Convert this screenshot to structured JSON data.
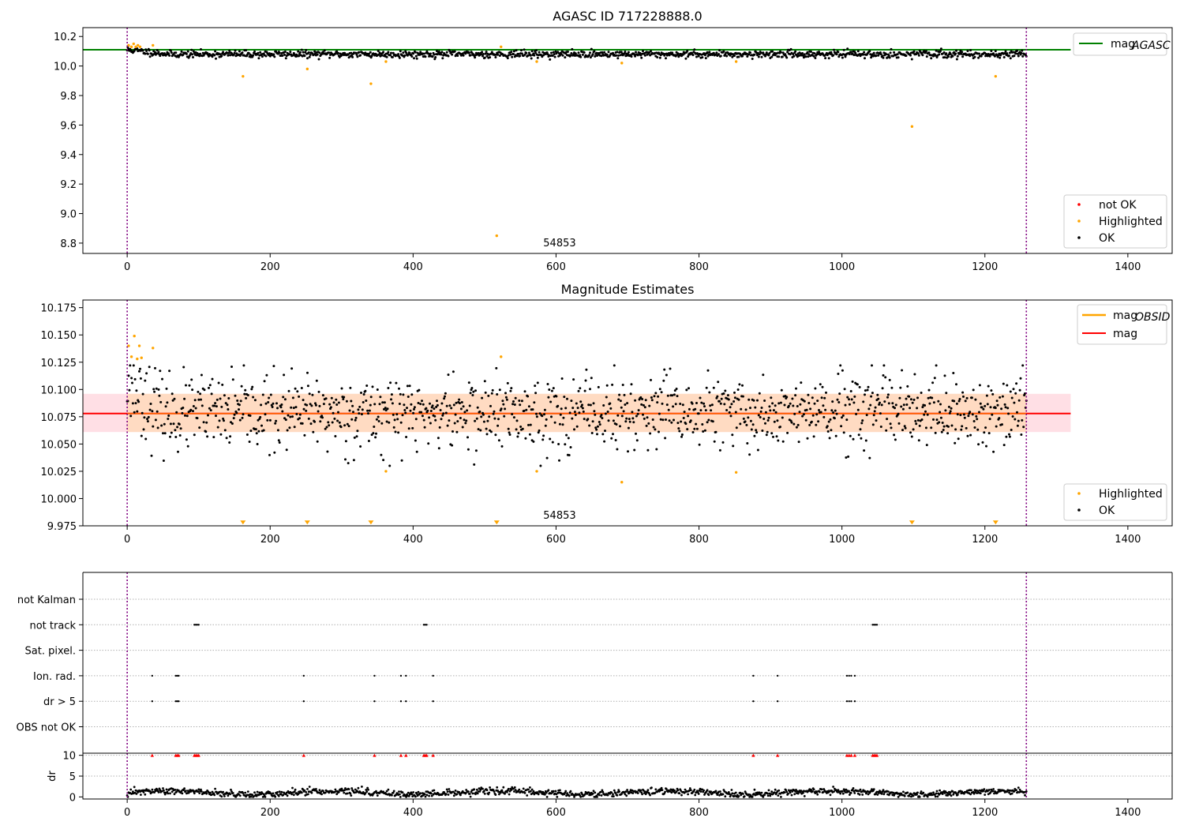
{
  "colors": {
    "ok": "#000000",
    "highlighted": "#ffa500",
    "not_ok": "#ff0000",
    "agasc_line": "#008000",
    "mag_line": "#ff0000",
    "mag_obsid_line": "#ffa500",
    "band": "#ffc0cb",
    "inner_band": "#ffdab9",
    "boundary": "#800080"
  },
  "chart_data": [
    {
      "type": "scatter",
      "title": "AGASC ID 717228888.0",
      "annotation": "54853",
      "xlim": [
        -62,
        1462
      ],
      "ylim": [
        8.73,
        10.26
      ],
      "xticks": [
        0,
        200,
        400,
        600,
        800,
        1000,
        1200,
        1400
      ],
      "yticks": [
        8.8,
        9.0,
        9.2,
        9.4,
        9.6,
        9.8,
        10.0,
        10.2
      ],
      "ytick_labels": [
        "8.8",
        "9.0",
        "9.2",
        "9.4",
        "9.6",
        "9.8",
        "10.0",
        "10.2"
      ],
      "reference_line": {
        "name": "mag_AGASC",
        "label_main": "mag",
        "label_sub": "AGASC",
        "y": 10.11,
        "x": [
          -62,
          1320
        ]
      },
      "vlines": [
        0,
        1258
      ],
      "ok_series": {
        "name": "OK",
        "n": 1258,
        "x0": 0,
        "x1": 1258,
        "baseline": 10.08,
        "spread": 0.012
      },
      "highlighted": {
        "name": "Highlighted",
        "x": [
          2,
          6,
          9,
          12,
          15,
          18,
          36,
          162,
          252,
          341,
          362,
          517,
          523,
          573,
          692,
          852,
          1098,
          1215
        ],
        "y": [
          10.14,
          10.13,
          10.15,
          10.13,
          10.14,
          10.13,
          10.14,
          9.93,
          9.98,
          9.88,
          10.03,
          8.85,
          10.13,
          10.03,
          10.02,
          10.03,
          9.59,
          9.93
        ]
      },
      "legend_lines": [
        {
          "name": "mag_AGASC",
          "main": "mag",
          "sub": "AGASC"
        }
      ],
      "legend_points": [
        "not OK",
        "Highlighted",
        "OK"
      ],
      "legend_placement_lines": "upper right",
      "legend_placement_points": "lower right"
    },
    {
      "type": "scatter",
      "title": "Magnitude Estimates",
      "annotation": "54853",
      "xlim": [
        -62,
        1462
      ],
      "ylim": [
        9.975,
        10.182
      ],
      "xticks": [
        0,
        200,
        400,
        600,
        800,
        1000,
        1200,
        1400
      ],
      "yticks": [
        9.975,
        10.0,
        10.025,
        10.05,
        10.075,
        10.1,
        10.125,
        10.15,
        10.175
      ],
      "ytick_labels": [
        "9.975",
        "10.000",
        "10.025",
        "10.050",
        "10.075",
        "10.100",
        "10.125",
        "10.150",
        "10.175"
      ],
      "mag_line": {
        "name": "mag",
        "y": 10.078,
        "x": [
          -62,
          1320
        ]
      },
      "band": {
        "y": [
          10.061,
          10.096
        ],
        "x": [
          -62,
          1320
        ]
      },
      "inner_band": {
        "y": [
          10.061,
          10.096
        ],
        "x": [
          0,
          1258
        ]
      },
      "mag_obsid_line": {
        "name": "mag_OBSID",
        "y": 10.078,
        "x": [
          0,
          1258
        ]
      },
      "vlines": [
        0,
        1258
      ],
      "ok_series": {
        "name": "OK",
        "n": 1258,
        "x0": 0,
        "x1": 1258,
        "baseline": 10.078,
        "spread": 0.017
      },
      "highlighted": {
        "name": "Highlighted",
        "x": [
          2,
          6,
          10,
          14,
          17,
          20,
          36,
          362,
          523,
          573,
          692,
          852
        ],
        "y": [
          10.14,
          10.13,
          10.149,
          10.128,
          10.14,
          10.129,
          10.138,
          10.025,
          10.13,
          10.025,
          10.015,
          10.024
        ]
      },
      "off_scale_low": {
        "x": [
          162,
          252,
          341,
          517,
          1098,
          1215
        ],
        "y": 9.977
      },
      "legend_lines": [
        {
          "name": "mag_OBSID",
          "main": "mag",
          "sub": "OBSID"
        },
        {
          "name": "mag",
          "main": "mag",
          "sub": ""
        }
      ],
      "legend_points": [
        "Highlighted",
        "OK"
      ],
      "legend_placement_lines": "upper right",
      "legend_placement_points": "lower right"
    },
    {
      "type": "scatter",
      "title": "",
      "xlim": [
        -62,
        1462
      ],
      "categories": [
        "not Kalman",
        "not track",
        "Sat. pixel.",
        "Ion. rad.",
        "dr > 5",
        "OBS not OK"
      ],
      "flags": {
        "not Kalman": [],
        "not track": [
          94,
          96,
          98,
          100,
          415,
          417,
          419,
          1043,
          1045,
          1047,
          1049
        ],
        "Sat. pixel.": [],
        "Ion. rad.": [
          35,
          68,
          70,
          72,
          247,
          346,
          383,
          390,
          428,
          876,
          910,
          1007,
          1010,
          1013,
          1018
        ],
        "dr > 5": [
          35,
          68,
          70,
          72,
          247,
          346,
          383,
          390,
          428,
          876,
          910,
          1007,
          1010,
          1013,
          1018
        ],
        "OBS not OK": []
      },
      "vlines": [
        0,
        1258
      ]
    },
    {
      "type": "scatter",
      "title": "",
      "ylabel": "dr",
      "xlim": [
        -62,
        1462
      ],
      "ylim": [
        -0.5,
        10.5
      ],
      "xticks": [
        0,
        200,
        400,
        600,
        800,
        1000,
        1200,
        1400
      ],
      "yticks": [
        0,
        5,
        10
      ],
      "ytick_labels": [
        "0",
        "5",
        "10"
      ],
      "ok_series": {
        "name": "OK",
        "n": 1258,
        "x0": 0,
        "x1": 1258,
        "baseline": 1.0,
        "spread": 0.4
      },
      "not_ok_capped": {
        "name": "not OK",
        "y": 10,
        "x": [
          35,
          68,
          70,
          72,
          94,
          96,
          98,
          100,
          247,
          346,
          383,
          390,
          415,
          417,
          419,
          428,
          876,
          910,
          1007,
          1010,
          1013,
          1018,
          1043,
          1045,
          1047,
          1049
        ]
      },
      "vlines": [
        0,
        1258
      ]
    }
  ]
}
